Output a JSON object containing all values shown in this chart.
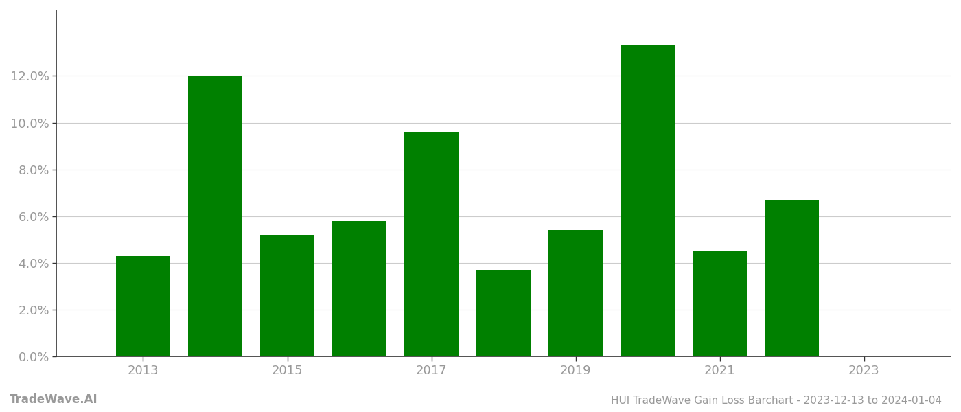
{
  "years": [
    2013,
    2014,
    2015,
    2016,
    2017,
    2018,
    2019,
    2020,
    2021,
    2022
  ],
  "values": [
    0.043,
    0.12,
    0.052,
    0.058,
    0.096,
    0.037,
    0.054,
    0.133,
    0.045,
    0.067
  ],
  "bar_color": "#008000",
  "title": "HUI TradeWave Gain Loss Barchart - 2023-12-13 to 2024-01-04",
  "watermark": "TradeWave.AI",
  "ylim": [
    0,
    0.148
  ],
  "yticks": [
    0.0,
    0.02,
    0.04,
    0.06,
    0.08,
    0.1,
    0.12
  ],
  "xtick_positions": [
    2013,
    2015,
    2017,
    2019,
    2021,
    2023
  ],
  "xlim": [
    2011.8,
    2024.2
  ],
  "background_color": "#ffffff",
  "grid_color": "#cccccc",
  "text_color": "#999999",
  "spine_color": "#333333",
  "title_fontsize": 11,
  "tick_fontsize": 13,
  "watermark_fontsize": 12,
  "bar_width": 0.75
}
